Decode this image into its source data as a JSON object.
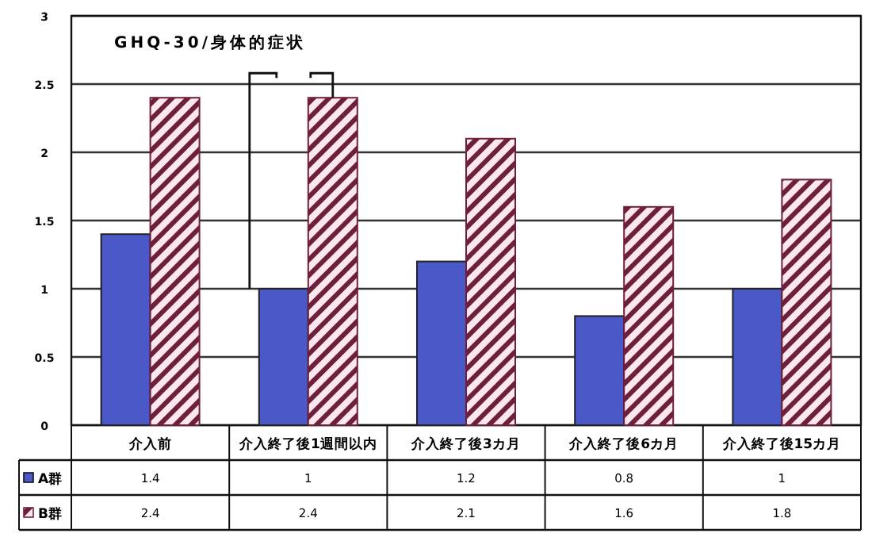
{
  "chart_data": {
    "type": "bar",
    "title": "GHQ-30/身体的症状",
    "categories": [
      "介入前",
      "介入終了後1週間以内",
      "介入終了後3カ月",
      "介入終了後6カ月",
      "介入終了後15カ月"
    ],
    "series": [
      {
        "name": "A群",
        "color": "#4a58c8",
        "values": [
          1.4,
          1,
          1.2,
          0.8,
          1
        ]
      },
      {
        "name": "B群",
        "color": "#6e1f3c",
        "values": [
          2.4,
          2.4,
          2.1,
          1.6,
          1.8
        ]
      }
    ],
    "ylim": [
      0,
      3
    ],
    "yticks": [
      0,
      0.5,
      1,
      1.5,
      2,
      2.5,
      3
    ],
    "grid": "y",
    "data_labels": true,
    "legend": "bottom left"
  }
}
